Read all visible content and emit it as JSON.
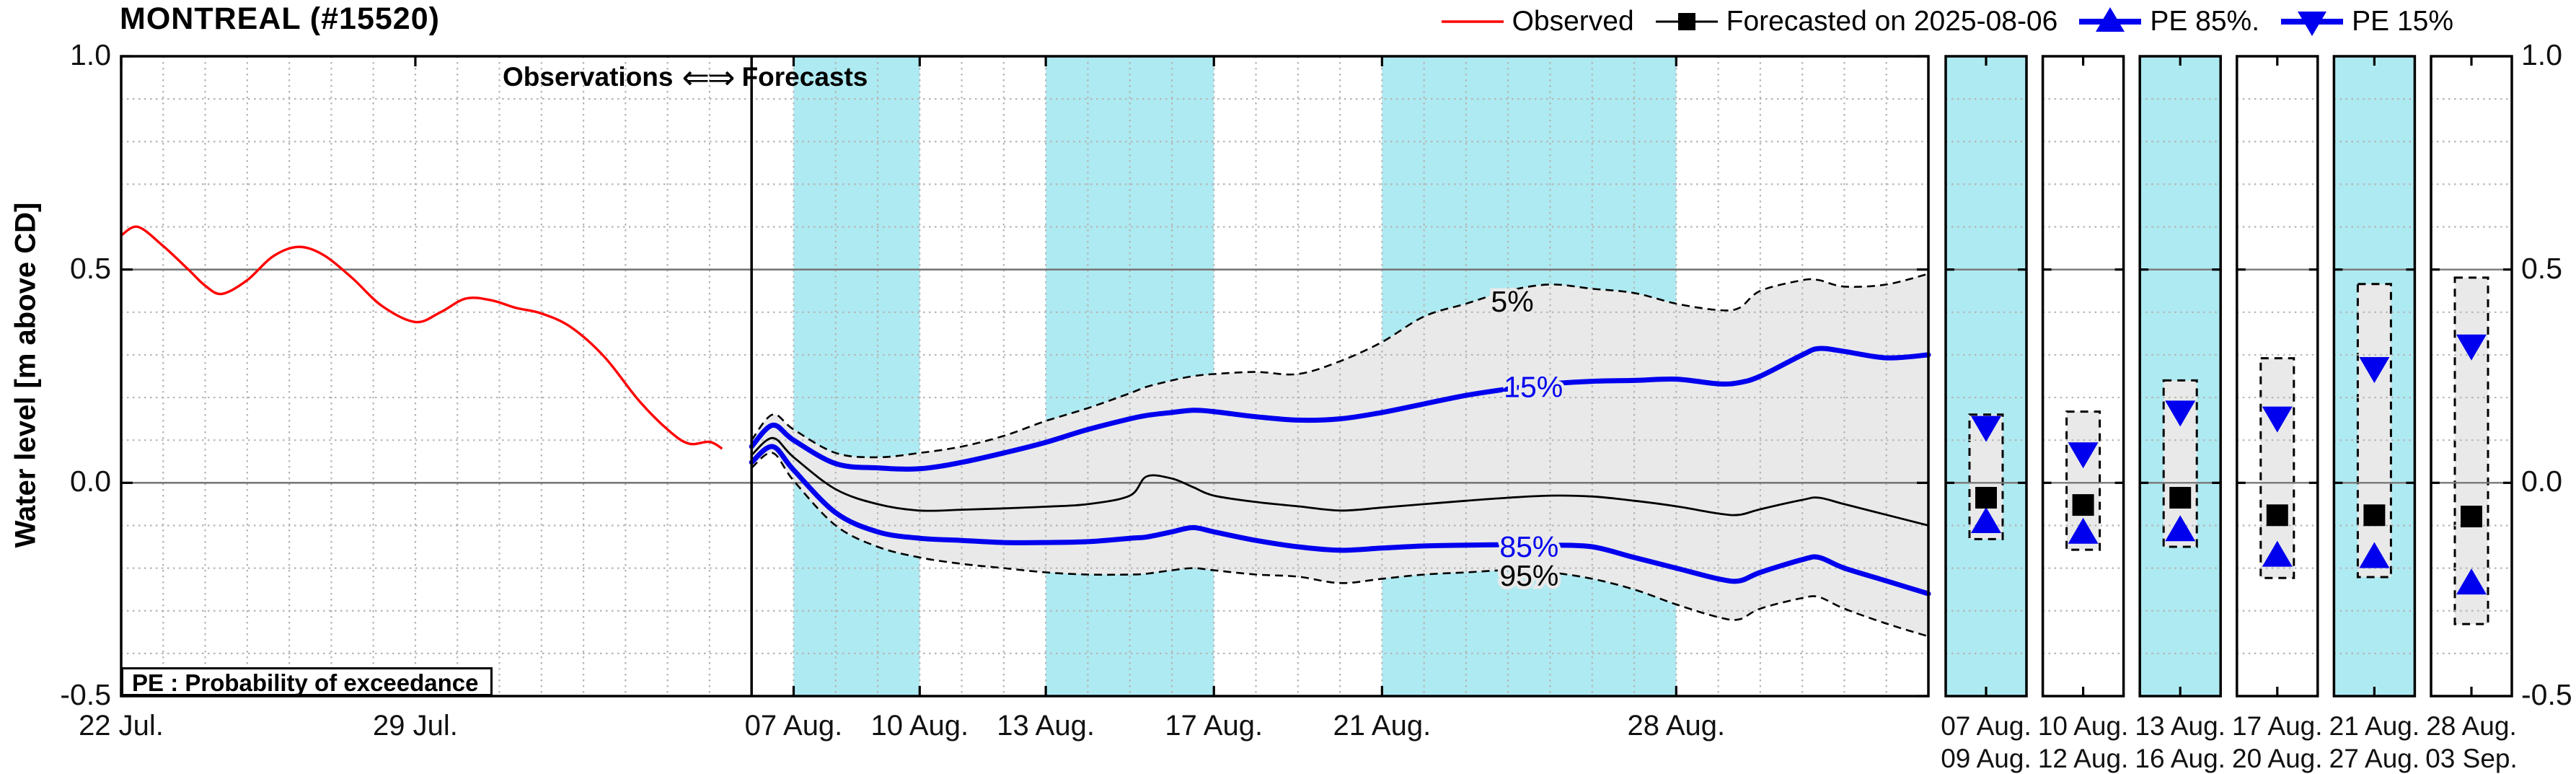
{
  "title": "MONTREAL (#15520)",
  "legend": {
    "observed_label": "Observed",
    "forecast_label": "Forecasted on 2025-08-06",
    "pe85_label": "PE 85%.",
    "pe15_label": "PE 15%"
  },
  "annotations": {
    "observations_label": "Observations",
    "arrows": "⇐⇒",
    "forecasts_label": "Forecasts",
    "pe_note": "PE : Probability of exceedance",
    "pct_labels": {
      "p5": "5%",
      "p15": "15%",
      "p85": "85%",
      "p95": "95%"
    }
  },
  "colors": {
    "observed": "#ff0000",
    "median": "#000000",
    "pe_blue": "#0000ee",
    "band_fill": "#e9e9e9",
    "cyan_band": "#aeeaf2",
    "grid_minor": "#b5b5b5",
    "grid_major": "#787878",
    "frame": "#000000",
    "tick_label": "#111111"
  },
  "axes": {
    "y_title": "Water level [m above CD]",
    "ylim": [
      -0.5,
      1.0
    ],
    "yticks": [
      {
        "label": "1.0",
        "v": 1.0
      },
      {
        "label": "0.5",
        "v": 0.5
      },
      {
        "label": "0.0",
        "v": 0.0
      },
      {
        "label": "-0.5",
        "v": -0.5
      }
    ],
    "y_minor_step": 0.1,
    "x_unit": "days since 22 Jul",
    "xlim": [
      0,
      43
    ],
    "xticks": [
      {
        "label": "22 Jul.",
        "day": 0
      },
      {
        "label": "29 Jul.",
        "day": 7
      },
      {
        "label": "07 Aug.",
        "day": 16
      },
      {
        "label": "10 Aug.",
        "day": 19
      },
      {
        "label": "13 Aug.",
        "day": 22
      },
      {
        "label": "17 Aug.",
        "day": 26
      },
      {
        "label": "21 Aug.",
        "day": 30
      },
      {
        "label": "28 Aug.",
        "day": 37
      }
    ]
  },
  "chart_data": {
    "type": "line",
    "title": "MONTREAL (#15520) water level forecast",
    "forecast_issue_day": 15,
    "cyan_bands": [
      [
        16,
        19
      ],
      [
        22,
        26
      ],
      [
        30,
        37
      ]
    ],
    "observed": {
      "x": [
        0,
        0.4,
        1,
        1.6,
        2,
        2.4,
        3,
        3.6,
        4.2,
        4.8,
        5.5,
        6.2,
        7,
        7.6,
        8.2,
        8.8,
        9.4,
        10,
        10.7,
        11.5,
        12.3,
        13,
        13.5,
        14,
        14.3
      ],
      "y": [
        0.58,
        0.6,
        0.555,
        0.5,
        0.462,
        0.443,
        0.475,
        0.53,
        0.553,
        0.535,
        0.48,
        0.415,
        0.377,
        0.4,
        0.432,
        0.428,
        0.41,
        0.397,
        0.365,
        0.295,
        0.195,
        0.125,
        0.092,
        0.096,
        0.08
      ]
    },
    "forecast": {
      "x": [
        15,
        15.5,
        16,
        17,
        18,
        19,
        20,
        21,
        22,
        23,
        24,
        24.4,
        25,
        25.5,
        26,
        27,
        28,
        29,
        30,
        31,
        32,
        33,
        34,
        35,
        36,
        37,
        38,
        38.5,
        39,
        40,
        40.4,
        41,
        42,
        43
      ],
      "p05": [
        0.1,
        0.16,
        0.125,
        0.07,
        0.06,
        0.07,
        0.085,
        0.11,
        0.145,
        0.175,
        0.21,
        0.225,
        0.24,
        0.25,
        0.255,
        0.26,
        0.255,
        0.285,
        0.33,
        0.39,
        0.42,
        0.45,
        0.465,
        0.455,
        0.445,
        0.42,
        0.405,
        0.41,
        0.45,
        0.475,
        0.475,
        0.46,
        0.465,
        0.49
      ],
      "p15": [
        0.085,
        0.135,
        0.1,
        0.045,
        0.035,
        0.033,
        0.048,
        0.07,
        0.095,
        0.125,
        0.15,
        0.158,
        0.165,
        0.17,
        0.167,
        0.155,
        0.147,
        0.15,
        0.165,
        0.185,
        0.205,
        0.22,
        0.232,
        0.238,
        0.24,
        0.243,
        0.232,
        0.235,
        0.25,
        0.3,
        0.315,
        0.308,
        0.293,
        0.3
      ],
      "p50": [
        0.065,
        0.105,
        0.06,
        -0.015,
        -0.05,
        -0.065,
        -0.063,
        -0.06,
        -0.056,
        -0.05,
        -0.03,
        0.015,
        0.01,
        -0.01,
        -0.03,
        -0.045,
        -0.055,
        -0.065,
        -0.058,
        -0.05,
        -0.042,
        -0.035,
        -0.03,
        -0.032,
        -0.042,
        -0.055,
        -0.072,
        -0.075,
        -0.062,
        -0.04,
        -0.035,
        -0.05,
        -0.075,
        -0.1
      ],
      "p85": [
        0.048,
        0.085,
        0.03,
        -0.07,
        -0.115,
        -0.13,
        -0.135,
        -0.14,
        -0.14,
        -0.138,
        -0.13,
        -0.127,
        -0.115,
        -0.105,
        -0.115,
        -0.135,
        -0.15,
        -0.158,
        -0.153,
        -0.148,
        -0.146,
        -0.145,
        -0.146,
        -0.15,
        -0.175,
        -0.2,
        -0.225,
        -0.23,
        -0.21,
        -0.18,
        -0.175,
        -0.2,
        -0.23,
        -0.26
      ],
      "p95": [
        0.035,
        0.07,
        0.005,
        -0.1,
        -0.15,
        -0.175,
        -0.19,
        -0.2,
        -0.21,
        -0.215,
        -0.215,
        -0.213,
        -0.205,
        -0.2,
        -0.205,
        -0.215,
        -0.22,
        -0.235,
        -0.225,
        -0.215,
        -0.21,
        -0.205,
        -0.21,
        -0.225,
        -0.25,
        -0.285,
        -0.315,
        -0.32,
        -0.295,
        -0.27,
        -0.268,
        -0.295,
        -0.33,
        -0.36
      ]
    },
    "pct_label_positions": {
      "p5": {
        "day": 33.1,
        "v": 0.425
      },
      "p15": {
        "day": 33.6,
        "v": 0.225
      },
      "p85": {
        "day": 33.5,
        "v": -0.15
      },
      "p95": {
        "day": 33.5,
        "v": -0.218
      }
    },
    "panels": [
      {
        "date_start": "07 Aug.",
        "date_end": "09 Aug.",
        "fill": "cyan",
        "p05": 0.16,
        "p15": 0.128,
        "p50": -0.035,
        "p85": -0.089,
        "p95": -0.132
      },
      {
        "date_start": "10 Aug.",
        "date_end": "12 Aug.",
        "fill": "white",
        "p05": 0.167,
        "p15": 0.066,
        "p50": -0.052,
        "p85": -0.114,
        "p95": -0.157
      },
      {
        "date_start": "13 Aug.",
        "date_end": "16 Aug.",
        "fill": "cyan",
        "p05": 0.24,
        "p15": 0.164,
        "p50": -0.035,
        "p85": -0.108,
        "p95": -0.15
      },
      {
        "date_start": "17 Aug.",
        "date_end": "20 Aug.",
        "fill": "white",
        "p05": 0.292,
        "p15": 0.15,
        "p50": -0.076,
        "p85": -0.168,
        "p95": -0.223
      },
      {
        "date_start": "21 Aug.",
        "date_end": "27 Aug.",
        "fill": "cyan",
        "p05": 0.466,
        "p15": 0.266,
        "p50": -0.076,
        "p85": -0.171,
        "p95": -0.221
      },
      {
        "date_start": "28 Aug.",
        "date_end": "03 Sep.",
        "fill": "white",
        "p05": 0.481,
        "p15": 0.319,
        "p50": -0.079,
        "p85": -0.233,
        "p95": -0.331
      }
    ]
  }
}
